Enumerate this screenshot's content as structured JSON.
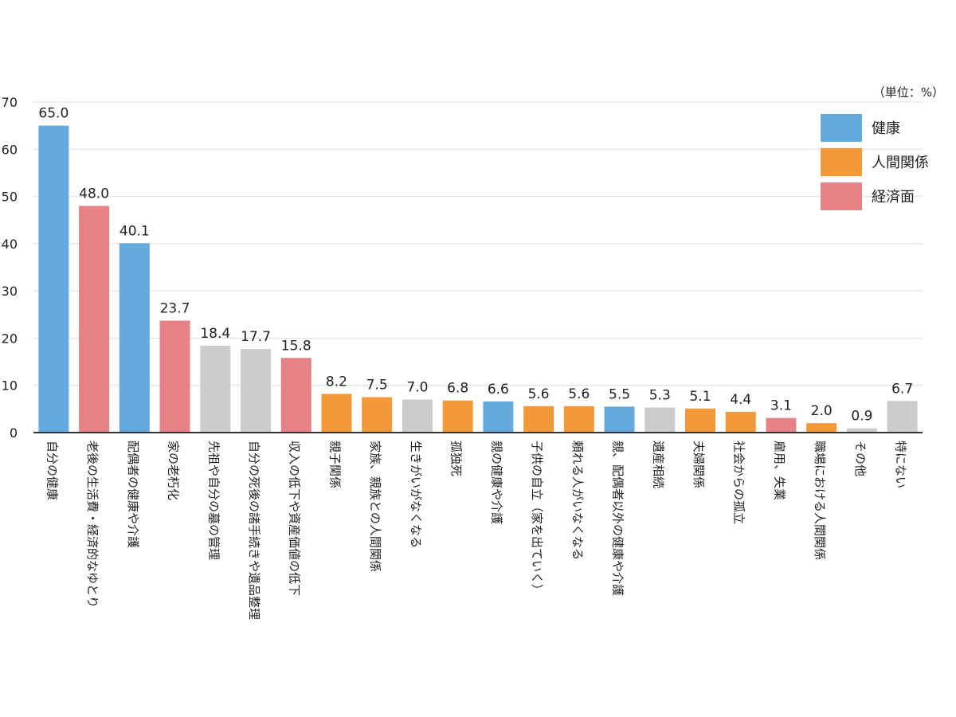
{
  "chart_data": {
    "type": "bar",
    "unit_note": "（単位：%）",
    "ylim": [
      0,
      70
    ],
    "yticks": [
      0,
      10,
      20,
      30,
      40,
      50,
      60,
      70
    ],
    "grid": true,
    "legend_position": "top-right",
    "legend": [
      {
        "label": "健康",
        "color": "#64aade"
      },
      {
        "label": "人間関係",
        "color": "#f4993a"
      },
      {
        "label": "経済面",
        "color": "#e68285"
      }
    ],
    "other_color": "#cccccc",
    "categories": [
      "自分の健康",
      "老後の生活費・経済的なゆとり",
      "配偶者の健康や介護",
      "家の老朽化",
      "先祖や自分の墓の管理",
      "自分の死後の諸手続きや遺品整理",
      "収入の低下や資産価値の低下",
      "親子関係",
      "家族、親族との人間関係",
      "生きがいがなくなる",
      "孤独死",
      "親の健康や介護",
      "子供の自立（家を出ていく）",
      "頼れる人がいなくなる",
      "親、配偶者以外の健康や介護",
      "遺産相続",
      "夫婦関係",
      "社会からの孤立",
      "雇用、失業",
      "職場における人間関係",
      "その他",
      "特にない"
    ],
    "values": [
      65.0,
      48.0,
      40.1,
      23.7,
      18.4,
      17.7,
      15.8,
      8.2,
      7.5,
      7.0,
      6.8,
      6.6,
      5.6,
      5.6,
      5.5,
      5.3,
      5.1,
      4.4,
      3.1,
      2.0,
      0.9,
      6.7
    ],
    "value_labels": [
      "65.0",
      "48.0",
      "40.1",
      "23.7",
      "18.4",
      "17.7",
      "15.8",
      "8.2",
      "7.5",
      "7.0",
      "6.8",
      "6.6",
      "5.6",
      "5.6",
      "5.5",
      "5.3",
      "5.1",
      "4.4",
      "3.1",
      "2.0",
      "0.9",
      "6.7"
    ],
    "groups": [
      "健康",
      "経済面",
      "健康",
      "経済面",
      "その他",
      "その他",
      "経済面",
      "人間関係",
      "人間関係",
      "その他",
      "人間関係",
      "健康",
      "人間関係",
      "人間関係",
      "健康",
      "その他",
      "人間関係",
      "人間関係",
      "経済面",
      "人間関係",
      "その他",
      "その他"
    ]
  }
}
